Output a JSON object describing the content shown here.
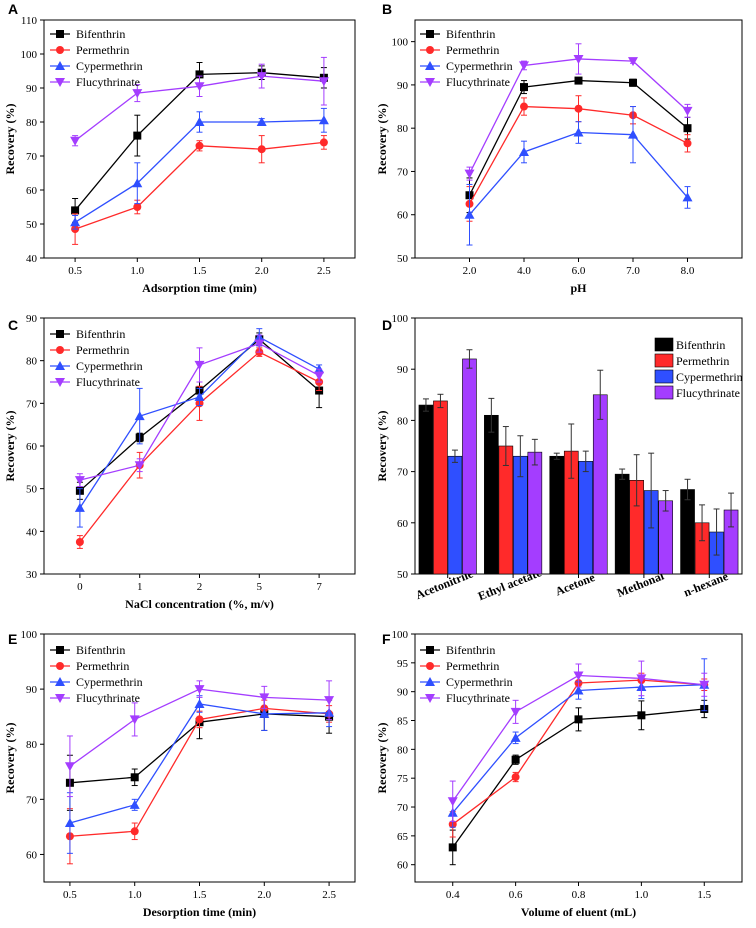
{
  "series_names": [
    "Bifenthrin",
    "Permethrin",
    "Cypermethrin",
    "Flucythrinate"
  ],
  "colors": {
    "Bifenthrin": "#000000",
    "Permethrin": "#ff2a2a",
    "Cypermethrin": "#2f4fff",
    "Flucythrinate": "#a43dff"
  },
  "markers": {
    "Bifenthrin": "square",
    "Permethrin": "circle",
    "Cypermethrin": "triangle-up",
    "Flucythrinate": "triangle-down"
  },
  "chart_data": [
    {
      "panel": "A",
      "type": "line",
      "xlabel": "Adsorption time (min)",
      "ylabel": "Recovery (%)",
      "x": [
        0.5,
        1.0,
        1.5,
        2.0,
        2.5
      ],
      "xticks": [
        "0.5",
        "1.0",
        "1.5",
        "2.0",
        "2.5"
      ],
      "xlim": [
        0.25,
        2.75
      ],
      "ylim": [
        40,
        110
      ],
      "yticks": [
        40,
        50,
        60,
        70,
        80,
        90,
        100,
        110
      ],
      "series": [
        {
          "name": "Bifenthrin",
          "values": [
            54,
            76,
            94,
            94.5,
            93
          ],
          "errors": [
            3.5,
            6,
            3.5,
            2,
            3
          ]
        },
        {
          "name": "Permethrin",
          "values": [
            48.5,
            55,
            73,
            72,
            74
          ],
          "errors": [
            4.5,
            2,
            1.5,
            4,
            2
          ]
        },
        {
          "name": "Cypermethrin",
          "values": [
            50.5,
            62,
            80,
            80,
            80.5
          ],
          "errors": [
            2,
            6,
            3,
            1,
            3.5
          ]
        },
        {
          "name": "Flucythrinate",
          "values": [
            74.5,
            88.5,
            90.5,
            93.5,
            92
          ],
          "errors": [
            1.5,
            2.5,
            3,
            3.5,
            7
          ]
        }
      ]
    },
    {
      "panel": "B",
      "type": "line",
      "xlabel": "pH",
      "ylabel": "Recovery (%)",
      "x": [
        1,
        2,
        3,
        4,
        5
      ],
      "xticks": [
        "2.0",
        "4.0",
        "6.0",
        "7.0",
        "8.0"
      ],
      "xlim": [
        0,
        6
      ],
      "ylim": [
        50,
        105
      ],
      "yticks": [
        50,
        60,
        70,
        80,
        90,
        100
      ],
      "series": [
        {
          "name": "Bifenthrin",
          "values": [
            64.5,
            89.5,
            91,
            90.5,
            80
          ],
          "errors": [
            4,
            1.5,
            0.5,
            0.8,
            2.5
          ]
        },
        {
          "name": "Permethrin",
          "values": [
            62.5,
            85,
            84.5,
            83,
            76.5
          ],
          "errors": [
            4,
            2,
            3,
            2,
            2
          ]
        },
        {
          "name": "Cypermethrin",
          "values": [
            60,
            74.5,
            79,
            78.5,
            64
          ],
          "errors": [
            7,
            2.5,
            2.5,
            6.5,
            2.5
          ]
        },
        {
          "name": "Flucythrinate",
          "values": [
            69.5,
            94.5,
            96,
            95.5,
            84
          ],
          "errors": [
            1.5,
            1,
            3.5,
            0.5,
            1.5
          ]
        }
      ]
    },
    {
      "panel": "C",
      "type": "line",
      "xlabel": "NaCl concentration (%, m/v)",
      "ylabel": "Recovery (%)",
      "x": [
        1,
        2,
        3,
        4,
        5
      ],
      "xticks": [
        "0",
        "1",
        "2",
        "5",
        "7"
      ],
      "xlim": [
        0.4,
        5.6
      ],
      "ylim": [
        30,
        90
      ],
      "yticks": [
        30,
        40,
        50,
        60,
        70,
        80,
        90
      ],
      "series": [
        {
          "name": "Bifenthrin",
          "values": [
            49.5,
            62,
            73,
            85,
            73
          ],
          "errors": [
            2,
            1,
            2,
            1.5,
            4
          ]
        },
        {
          "name": "Permethrin",
          "values": [
            37.5,
            55.5,
            70,
            82,
            75
          ],
          "errors": [
            1.5,
            3,
            4,
            1,
            2
          ]
        },
        {
          "name": "Cypermethrin",
          "values": [
            45.5,
            67,
            71.5,
            85.5,
            78
          ],
          "errors": [
            4.5,
            6.5,
            2,
            2,
            1
          ]
        },
        {
          "name": "Flucythrinate",
          "values": [
            52,
            55.5,
            79,
            84,
            76.5
          ],
          "errors": [
            1.5,
            1.5,
            4,
            2,
            1.5
          ]
        }
      ]
    },
    {
      "panel": "D",
      "type": "bar",
      "xlabel": "",
      "ylabel": "Recovery (%)",
      "categories": [
        "Acetonitrile",
        "Ethyl acetate",
        "Acetone",
        "Methonal",
        "n-hexane"
      ],
      "ylim": [
        50,
        100
      ],
      "yticks": [
        50,
        60,
        70,
        80,
        90,
        100
      ],
      "series": [
        {
          "name": "Bifenthrin",
          "values": [
            83,
            81,
            73,
            69.5,
            66.5
          ],
          "errors": [
            1.2,
            3.3,
            0.6,
            1,
            2
          ]
        },
        {
          "name": "Permethrin",
          "values": [
            83.8,
            75,
            74,
            68.3,
            60
          ],
          "errors": [
            1.3,
            3.8,
            5.3,
            5,
            3.5
          ]
        },
        {
          "name": "Cypermethrin",
          "values": [
            73,
            73,
            72,
            66.3,
            58.2
          ],
          "errors": [
            1.2,
            4,
            2,
            7.3,
            4.5
          ]
        },
        {
          "name": "Flucythrinate",
          "values": [
            92,
            73.8,
            85,
            64.3,
            62.5
          ],
          "errors": [
            1.8,
            2.5,
            4.8,
            2,
            3.3
          ]
        }
      ]
    },
    {
      "panel": "E",
      "type": "line",
      "xlabel": "Desorption time (min)",
      "ylabel": "Recovery (%)",
      "x": [
        0.5,
        1.0,
        1.5,
        2.0,
        2.5
      ],
      "xticks": [
        "0.5",
        "1.0",
        "1.5",
        "2.0",
        "2.5"
      ],
      "xlim": [
        0.3,
        2.7
      ],
      "ylim": [
        55,
        100
      ],
      "yticks": [
        60,
        70,
        80,
        90,
        100
      ],
      "series": [
        {
          "name": "Bifenthrin",
          "values": [
            73,
            74,
            84,
            85.5,
            85
          ],
          "errors": [
            5,
            1.5,
            3,
            3,
            3
          ]
        },
        {
          "name": "Permethrin",
          "values": [
            63.3,
            64.2,
            84.5,
            86.5,
            85.5
          ],
          "errors": [
            5,
            1.5,
            1.5,
            1.5,
            1.5
          ]
        },
        {
          "name": "Cypermethrin",
          "values": [
            65.7,
            69,
            87.3,
            85.5,
            85.7
          ],
          "errors": [
            5.5,
            1,
            1.5,
            3,
            2.5
          ]
        },
        {
          "name": "Flucythrinate",
          "values": [
            76,
            84.5,
            90,
            88.5,
            88
          ],
          "errors": [
            5.5,
            3,
            1.5,
            2,
            3.5
          ]
        }
      ]
    },
    {
      "panel": "F",
      "type": "line",
      "xlabel": "Volume of eluent (mL)",
      "ylabel": "Recovery (%)",
      "x": [
        1,
        2,
        3,
        4,
        5
      ],
      "xticks": [
        "0.4",
        "0.6",
        "0.8",
        "1.0",
        "1.5"
      ],
      "xlim": [
        0.4,
        5.6
      ],
      "ylim": [
        57,
        100
      ],
      "yticks": [
        60,
        65,
        70,
        75,
        80,
        85,
        90,
        95,
        100
      ],
      "series": [
        {
          "name": "Bifenthrin",
          "values": [
            63,
            78.2,
            85.2,
            85.9,
            87
          ],
          "errors": [
            3,
            0.8,
            2,
            2.5,
            1.5
          ]
        },
        {
          "name": "Permethrin",
          "values": [
            67,
            75.2,
            91.5,
            92,
            91.2
          ],
          "errors": [
            2.2,
            0.8,
            1.5,
            1.2,
            1
          ]
        },
        {
          "name": "Cypermethrin",
          "values": [
            69,
            82,
            90.2,
            90.8,
            91.2
          ],
          "errors": [
            2.5,
            1,
            1.5,
            2,
            4.5
          ]
        },
        {
          "name": "Flucythrinate",
          "values": [
            71,
            86.5,
            92.8,
            92.3,
            91.2
          ],
          "errors": [
            3.5,
            2,
            2,
            3,
            2
          ]
        }
      ]
    }
  ]
}
